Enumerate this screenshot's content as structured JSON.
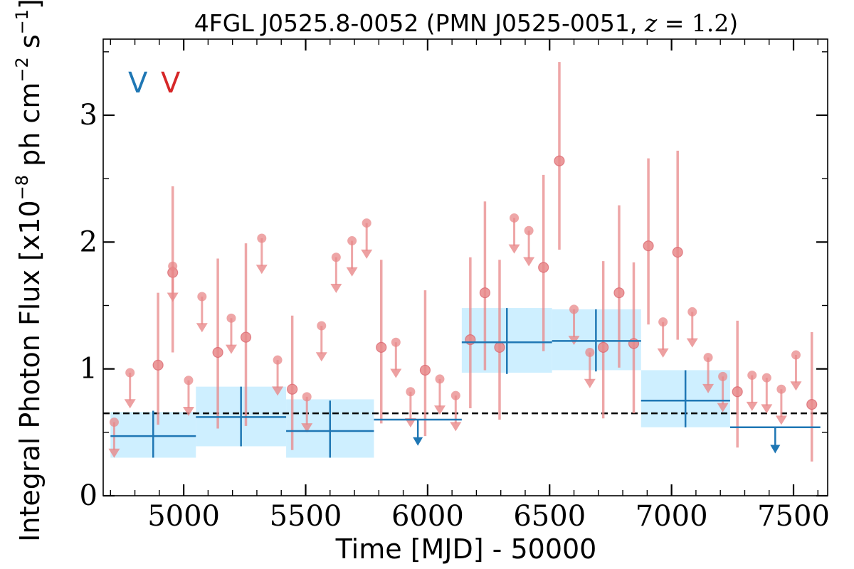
{
  "chart_data": {
    "type": "scatter",
    "title": "4FGL J0525.8-0052 (PMN J0525-0051, z = 1.2)",
    "title_parts": {
      "main": "4FGL J0525.8-0052 (PMN J0525-0051, ",
      "var": "z",
      "op": " = ",
      "num": "1.2",
      "close": ")"
    },
    "xlabel": "Time [MJD] - 50000",
    "ylabel": "Integral Photon Flux [x10",
    "ylabel_exp": "−8",
    "ylabel_mid": " ph cm",
    "ylabel_exp2": "−2",
    "ylabel_end": " s",
    "ylabel_exp3": "−1",
    "ylabel_close": "]",
    "xlim": [
      4670,
      7640
    ],
    "ylim": [
      0,
      3.6
    ],
    "x_ticks": [
      5000,
      5500,
      6000,
      6500,
      7000,
      7500
    ],
    "x_tick_labels": [
      "5000",
      "5500",
      "6000",
      "6500",
      "7000",
      "7500"
    ],
    "y_ticks": [
      0,
      1,
      2,
      3
    ],
    "y_tick_labels": [
      "0",
      "1",
      "2",
      "3"
    ],
    "legend": {
      "placement": "top-left",
      "entries": [
        "V",
        "V"
      ],
      "colors": [
        "#1f77b4",
        "#d62728"
      ]
    },
    "reference_line": {
      "y": 0.65,
      "style": "dashed",
      "color": "#000000"
    },
    "colors": {
      "long_bins": "#1f77b4",
      "long_fill": "#c6ecff",
      "short_bins": "#e8888a"
    },
    "series": [
      {
        "kind": "long_bins",
        "points": [
          {
            "x0": 4700,
            "x1": 5050,
            "xc": 4875,
            "y": 0.47,
            "ylo": 0.3,
            "yhi": 0.67,
            "band_lo": 0.3,
            "band_hi": 0.66
          },
          {
            "x0": 5050,
            "x1": 5420,
            "xc": 5235,
            "y": 0.62,
            "ylo": 0.39,
            "yhi": 0.86,
            "band_lo": 0.39,
            "band_hi": 0.86
          },
          {
            "x0": 5420,
            "x1": 5780,
            "xc": 5600,
            "y": 0.51,
            "ylo": 0.3,
            "yhi": 0.75,
            "band_lo": 0.3,
            "band_hi": 0.76
          },
          {
            "x0": 6140,
            "x1": 6510,
            "xc": 6325,
            "y": 1.21,
            "ylo": 0.96,
            "yhi": 1.48,
            "band_lo": 0.97,
            "band_hi": 1.48
          },
          {
            "x0": 6510,
            "x1": 6875,
            "xc": 6690,
            "y": 1.22,
            "ylo": 0.98,
            "yhi": 1.47,
            "band_lo": 0.99,
            "band_hi": 1.47
          },
          {
            "x0": 6875,
            "x1": 7240,
            "xc": 7057,
            "y": 0.75,
            "ylo": 0.54,
            "yhi": 0.99,
            "band_lo": 0.54,
            "band_hi": 0.99
          }
        ]
      },
      {
        "kind": "long_upper_limits",
        "points": [
          {
            "x0": 5780,
            "x1": 6140,
            "xc": 5960,
            "y": 0.6
          },
          {
            "x0": 7240,
            "x1": 7610,
            "xc": 7425,
            "y": 0.54
          }
        ]
      },
      {
        "kind": "short_detections",
        "points": [
          {
            "x": 4895,
            "y": 1.03,
            "ylo": 0.56,
            "yhi": 1.6
          },
          {
            "x": 4955,
            "y": 1.76,
            "ylo": 1.13,
            "yhi": 2.44
          },
          {
            "x": 5140,
            "y": 1.13,
            "ylo": 0.53,
            "yhi": 1.87
          },
          {
            "x": 5255,
            "y": 1.25,
            "ylo": 0.55,
            "yhi": 1.99
          },
          {
            "x": 5445,
            "y": 0.84,
            "ylo": 0.36,
            "yhi": 1.42
          },
          {
            "x": 5810,
            "y": 1.17,
            "ylo": 0.57,
            "yhi": 1.86
          },
          {
            "x": 5990,
            "y": 0.99,
            "ylo": 0.47,
            "yhi": 1.62
          },
          {
            "x": 6175,
            "y": 1.23,
            "ylo": 0.69,
            "yhi": 1.88
          },
          {
            "x": 6235,
            "y": 1.6,
            "ylo": 0.99,
            "yhi": 2.32
          },
          {
            "x": 6295,
            "y": 1.17,
            "ylo": 0.6,
            "yhi": 1.86
          },
          {
            "x": 6475,
            "y": 1.8,
            "ylo": 1.14,
            "yhi": 2.53
          },
          {
            "x": 6540,
            "y": 2.64,
            "ylo": 1.94,
            "yhi": 3.42
          },
          {
            "x": 6720,
            "y": 1.17,
            "ylo": 0.61,
            "yhi": 1.85
          },
          {
            "x": 6785,
            "y": 1.6,
            "ylo": 1.01,
            "yhi": 2.29
          },
          {
            "x": 6845,
            "y": 1.2,
            "ylo": 0.65,
            "yhi": 1.84
          },
          {
            "x": 6905,
            "y": 1.97,
            "ylo": 1.35,
            "yhi": 2.66
          },
          {
            "x": 7025,
            "y": 1.92,
            "ylo": 1.23,
            "yhi": 2.72
          },
          {
            "x": 7270,
            "y": 0.82,
            "ylo": 0.38,
            "yhi": 1.38
          },
          {
            "x": 7575,
            "y": 0.72,
            "ylo": 0.27,
            "yhi": 1.29
          }
        ]
      },
      {
        "kind": "short_upper_limits",
        "points": [
          {
            "x": 4715,
            "y": 0.58
          },
          {
            "x": 4780,
            "y": 0.97
          },
          {
            "x": 4955,
            "y": 1.81
          },
          {
            "x": 5020,
            "y": 0.91
          },
          {
            "x": 5075,
            "y": 1.57
          },
          {
            "x": 5195,
            "y": 1.4
          },
          {
            "x": 5320,
            "y": 2.03
          },
          {
            "x": 5385,
            "y": 1.07
          },
          {
            "x": 5505,
            "y": 0.78
          },
          {
            "x": 5565,
            "y": 1.34
          },
          {
            "x": 5625,
            "y": 1.88
          },
          {
            "x": 5690,
            "y": 2.01
          },
          {
            "x": 5750,
            "y": 2.15
          },
          {
            "x": 5870,
            "y": 1.21
          },
          {
            "x": 5930,
            "y": 0.82
          },
          {
            "x": 6050,
            "y": 0.92
          },
          {
            "x": 6115,
            "y": 0.79
          },
          {
            "x": 6355,
            "y": 2.19
          },
          {
            "x": 6415,
            "y": 2.09
          },
          {
            "x": 6600,
            "y": 1.47
          },
          {
            "x": 6665,
            "y": 1.13
          },
          {
            "x": 6965,
            "y": 1.37
          },
          {
            "x": 7085,
            "y": 1.45
          },
          {
            "x": 7150,
            "y": 1.09
          },
          {
            "x": 7210,
            "y": 0.94
          },
          {
            "x": 7330,
            "y": 0.95
          },
          {
            "x": 7390,
            "y": 0.93
          },
          {
            "x": 7450,
            "y": 0.84
          },
          {
            "x": 7510,
            "y": 1.11
          }
        ]
      }
    ]
  }
}
